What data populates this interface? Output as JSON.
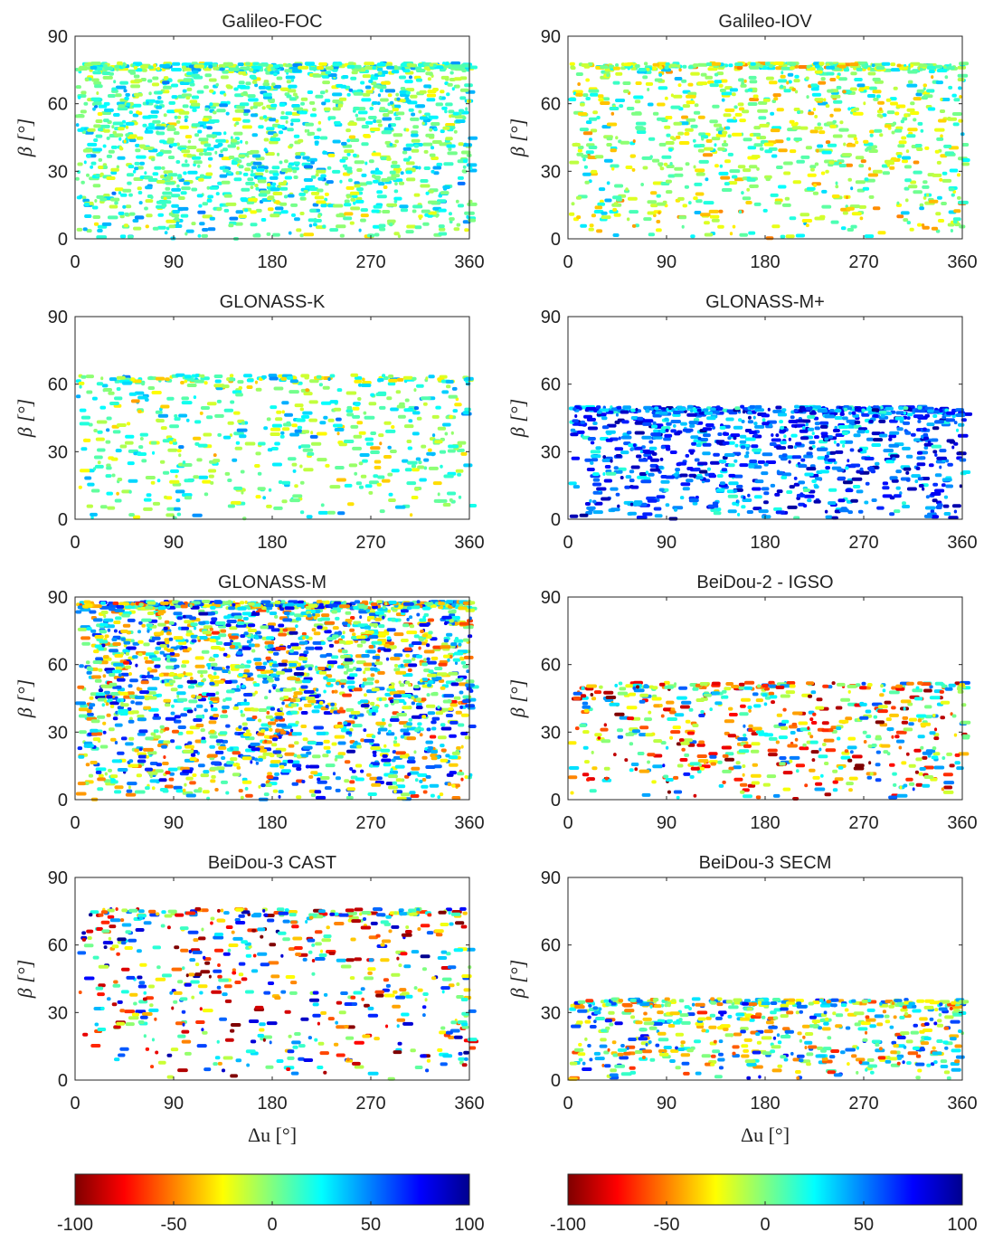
{
  "figure": {
    "colorbar_ticks": [
      "-100",
      "-50",
      "0",
      "50",
      "100"
    ],
    "colormap": [
      "#7f0000",
      "#ff0000",
      "#ff8000",
      "#ffff00",
      "#80ff80",
      "#00ffff",
      "#0080ff",
      "#0000ff",
      "#00008f"
    ]
  },
  "chart_data": [
    {
      "type": "scatter",
      "title": "Galileo-FOC",
      "xlabel": "",
      "ylabel": "β [°]",
      "xlim": [
        0,
        360
      ],
      "ylim": [
        0,
        90
      ],
      "xticks": [
        "0",
        "90",
        "180",
        "270",
        "360"
      ],
      "yticks": [
        "0",
        "30",
        "60",
        "90"
      ],
      "beta_range": [
        0,
        78
      ],
      "dominant_color_value": [
        -20,
        40
      ]
    },
    {
      "type": "scatter",
      "title": "Galileo-IOV",
      "xlabel": "",
      "ylabel": "β [°]",
      "xlim": [
        0,
        360
      ],
      "ylim": [
        0,
        90
      ],
      "xticks": [
        "0",
        "90",
        "180",
        "270",
        "360"
      ],
      "yticks": [
        "0",
        "30",
        "60",
        "90"
      ],
      "beta_range": [
        0,
        78
      ],
      "dominant_color_value": [
        -40,
        30
      ]
    },
    {
      "type": "scatter",
      "title": "GLONASS-K",
      "xlabel": "",
      "ylabel": "β [°]",
      "xlim": [
        0,
        360
      ],
      "ylim": [
        0,
        90
      ],
      "xticks": [
        "0",
        "90",
        "180",
        "270",
        "360"
      ],
      "yticks": [
        "0",
        "30",
        "60",
        "90"
      ],
      "beta_range": [
        0,
        64
      ],
      "dominant_color_value": [
        -30,
        40
      ]
    },
    {
      "type": "scatter",
      "title": "GLONASS-M+",
      "xlabel": "",
      "ylabel": "β [°]",
      "xlim": [
        0,
        360
      ],
      "ylim": [
        0,
        90
      ],
      "xticks": [
        "0",
        "90",
        "180",
        "270",
        "360"
      ],
      "yticks": [
        "0",
        "30",
        "60",
        "90"
      ],
      "beta_range": [
        0,
        50
      ],
      "dominant_color_value": [
        20,
        90
      ]
    },
    {
      "type": "scatter",
      "title": "GLONASS-M",
      "xlabel": "",
      "ylabel": "β [°]",
      "xlim": [
        0,
        360
      ],
      "ylim": [
        0,
        90
      ],
      "xticks": [
        "0",
        "90",
        "180",
        "270",
        "360"
      ],
      "yticks": [
        "0",
        "30",
        "60",
        "90"
      ],
      "beta_range": [
        0,
        88
      ],
      "dominant_color_value": [
        -60,
        80
      ]
    },
    {
      "type": "scatter",
      "title": "BeiDou-2 - IGSO",
      "xlabel": "",
      "ylabel": "β [°]",
      "xlim": [
        0,
        360
      ],
      "ylim": [
        0,
        90
      ],
      "xticks": [
        "0",
        "90",
        "180",
        "270",
        "360"
      ],
      "yticks": [
        "0",
        "30",
        "60",
        "90"
      ],
      "beta_range": [
        0,
        52
      ],
      "dominant_color_value": [
        -100,
        60
      ]
    },
    {
      "type": "scatter",
      "title": "BeiDou-3 CAST",
      "xlabel": "Δu [°]",
      "ylabel": "β [°]",
      "xlim": [
        0,
        360
      ],
      "ylim": [
        0,
        90
      ],
      "xticks": [
        "0",
        "90",
        "180",
        "270",
        "360"
      ],
      "yticks": [
        "0",
        "30",
        "60",
        "90"
      ],
      "beta_range": [
        0,
        76
      ],
      "dominant_color_value": [
        -100,
        90
      ]
    },
    {
      "type": "scatter",
      "title": "BeiDou-3 SECM",
      "xlabel": "Δu [°]",
      "ylabel": "β [°]",
      "xlim": [
        0,
        360
      ],
      "ylim": [
        0,
        90
      ],
      "xticks": [
        "0",
        "90",
        "180",
        "270",
        "360"
      ],
      "yticks": [
        "0",
        "30",
        "60",
        "90"
      ],
      "beta_range": [
        0,
        36
      ],
      "dominant_color_value": [
        -60,
        70
      ]
    }
  ]
}
